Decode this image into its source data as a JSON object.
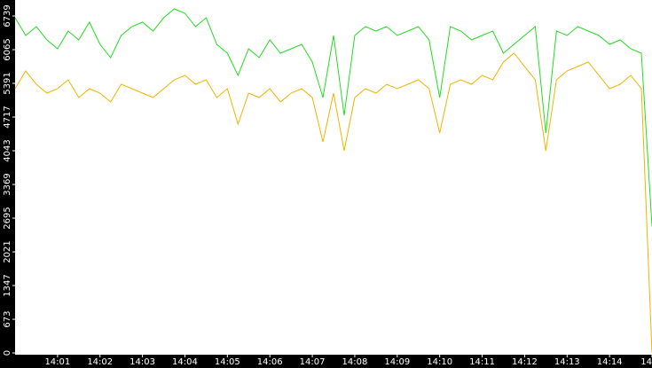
{
  "chart_data": {
    "type": "line",
    "x": [
      0,
      0.25,
      0.5,
      0.75,
      1,
      1.25,
      1.5,
      1.75,
      2,
      2.25,
      2.5,
      2.75,
      3,
      3.25,
      3.5,
      3.75,
      4,
      4.25,
      4.5,
      4.75,
      5,
      5.25,
      5.5,
      5.75,
      6,
      6.25,
      6.5,
      6.75,
      7,
      7.25,
      7.5,
      7.75,
      8,
      8.25,
      8.5,
      8.75,
      9,
      9.25,
      9.5,
      9.75,
      10,
      10.25,
      10.5,
      10.75,
      11,
      11.25,
      11.5,
      11.75,
      12,
      12.25,
      12.5,
      12.75,
      13,
      13.25,
      13.5,
      13.75,
      14,
      14.25,
      14.5,
      14.75,
      15
    ],
    "series": [
      {
        "color": "#22dd22",
        "values": [
          6703,
          6349,
          6526,
          6260,
          6083,
          6437,
          6260,
          6615,
          6171,
          5905,
          6349,
          6526,
          6615,
          6437,
          6703,
          6881,
          6792,
          6526,
          6703,
          6171,
          5994,
          5551,
          6083,
          5905,
          6260,
          5994,
          6083,
          6171,
          5817,
          5107,
          6349,
          4753,
          6349,
          6526,
          6437,
          6526,
          6349,
          6437,
          6526,
          6260,
          5107,
          6526,
          6437,
          6260,
          6349,
          6437,
          5994,
          6171,
          6349,
          6526,
          4398,
          6437,
          6349,
          6526,
          6437,
          6349,
          6171,
          6260,
          6083,
          5994,
          2536
        ]
      },
      {
        "color": "#f0b400",
        "values": [
          5285,
          5639,
          5373,
          5196,
          5285,
          5462,
          5107,
          5285,
          5196,
          5019,
          5373,
          5285,
          5196,
          5107,
          5285,
          5462,
          5551,
          5373,
          5462,
          5107,
          5285,
          4575,
          5196,
          5107,
          5285,
          5019,
          5196,
          5285,
          5107,
          4221,
          5196,
          4043,
          5107,
          5285,
          5196,
          5373,
          5285,
          5373,
          5462,
          5285,
          4398,
          5373,
          5462,
          5373,
          5551,
          5462,
          5817,
          5994,
          5728,
          5462,
          4043,
          5462,
          5639,
          5728,
          5817,
          5551,
          5285,
          5373,
          5551,
          5285,
          0
        ]
      }
    ],
    "xlim": [
      0,
      15
    ],
    "xticks": [
      {
        "value": 1,
        "label": "14:01"
      },
      {
        "value": 2,
        "label": "14:02"
      },
      {
        "value": 3,
        "label": "14:03"
      },
      {
        "value": 4,
        "label": "14:04"
      },
      {
        "value": 5,
        "label": "14:05"
      },
      {
        "value": 6,
        "label": "14:06"
      },
      {
        "value": 7,
        "label": "14:07"
      },
      {
        "value": 8,
        "label": "14:08"
      },
      {
        "value": 9,
        "label": "14:09"
      },
      {
        "value": 10,
        "label": "14:10"
      },
      {
        "value": 11,
        "label": "14:11"
      },
      {
        "value": 12,
        "label": "14:12"
      },
      {
        "value": 13,
        "label": "14:13"
      },
      {
        "value": 14,
        "label": "14:14"
      },
      {
        "value": 15,
        "label": "14"
      }
    ],
    "ylim": [
      0,
      7058
    ],
    "yticks": [
      0,
      673,
      1347,
      2021,
      2695,
      3369,
      4043,
      4717,
      5391,
      6065,
      6739
    ]
  }
}
